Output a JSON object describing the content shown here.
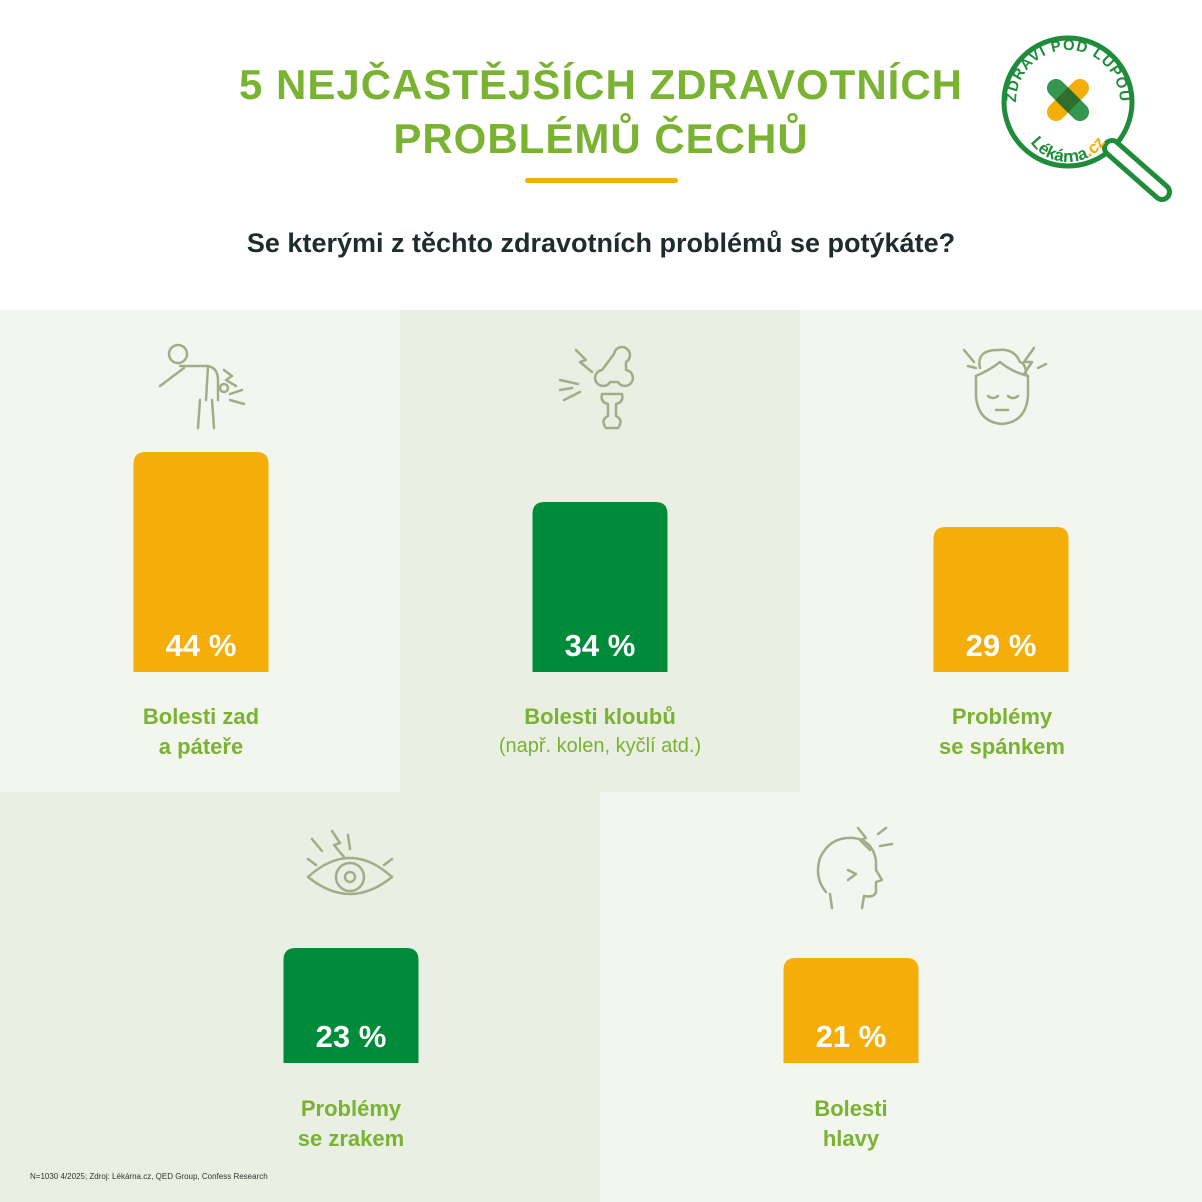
{
  "header": {
    "title_line1": "5 NEJČASTĚJŠÍCH ZDRAVOTNÍCH",
    "title_line2": "PROBLÉMŮ ČECHŮ",
    "question": "Se kterými z těchto zdravotních problémů se potýkáte?"
  },
  "logo": {
    "arc_text": "ZDRAVÍ POD LUPOU",
    "brand_main": "Lékárna",
    "brand_suffix": ".cz"
  },
  "colors": {
    "accent_green": "#7ab231",
    "bar_orange": "#f4ad09",
    "bar_green": "#008b3a",
    "logo_green": "#1e8c3a",
    "panel_light": "#f3f6ef",
    "panel_mid": "#e9efe3",
    "icon_stroke": "#a4ab88"
  },
  "chart_data": {
    "type": "bar",
    "unit": "%",
    "categories": [
      "Bolesti zad a páteře",
      "Bolesti kloubů",
      "Problémy se spánkem",
      "Problémy se zrakem",
      "Bolesti hlavy"
    ],
    "values": [
      44,
      34,
      29,
      23,
      21
    ],
    "value_labels": [
      "44 %",
      "34 %",
      "29 %",
      "23 %",
      "21 %"
    ],
    "title": "5 NEJČASTĚJŠÍCH ZDRAVOTNÍCH PROBLÉMŮ ČECHŮ",
    "ylim": [
      0,
      100
    ],
    "grid": false
  },
  "items": [
    {
      "label_line1": "Bolesti zad",
      "label_line2": "a páteře",
      "sublabel": "",
      "icon": "back-pain-icon",
      "bar_color": "#f4ad09"
    },
    {
      "label_line1": "Bolesti kloubů",
      "label_line2": "",
      "sublabel": "(např. kolen, kyčlí atd.)",
      "icon": "joint-pain-icon",
      "bar_color": "#008b3a"
    },
    {
      "label_line1": "Problémy",
      "label_line2": "se spánkem",
      "sublabel": "",
      "icon": "sleep-icon",
      "bar_color": "#f4ad09"
    },
    {
      "label_line1": "Problémy",
      "label_line2": "se zrakem",
      "sublabel": "",
      "icon": "eye-pain-icon",
      "bar_color": "#008b3a"
    },
    {
      "label_line1": "Bolesti",
      "label_line2": "hlavy",
      "sublabel": "",
      "icon": "headache-icon",
      "bar_color": "#f4ad09"
    }
  ],
  "footnote": "N=1030 4/2025; Zdroj: Lékárna.cz, QED Group, Confess Research"
}
